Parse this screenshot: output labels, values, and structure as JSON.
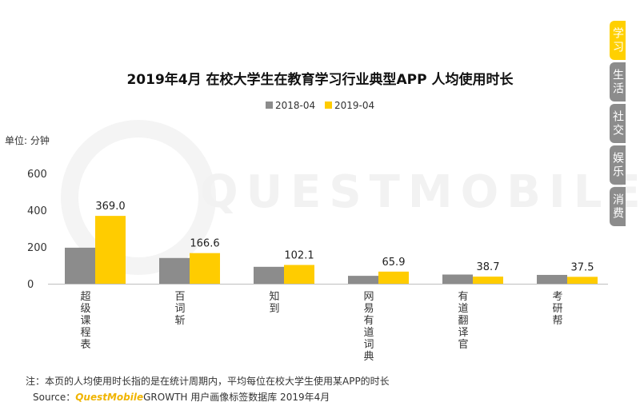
{
  "watermark_text": "QUESTMOBILE",
  "side_tabs": [
    {
      "label": "学习",
      "active": true
    },
    {
      "label": "生活",
      "active": false
    },
    {
      "label": "社交",
      "active": false
    },
    {
      "label": "娱乐",
      "active": false
    },
    {
      "label": "消费",
      "active": false
    }
  ],
  "footer": {
    "note": "注：本页的人均使用时长指的是在统计周期内，平均每位在校大学生使用某APP的时长",
    "source_prefix": "Source：",
    "source_brand": "QuestMobile",
    "source_rest": "GROWTH 用户画像标签数据库  2019年4月"
  },
  "colors": {
    "series_2018": "#8c8c8c",
    "series_2019": "#ffcc00",
    "accent": "#ffd000"
  },
  "chart_data": {
    "type": "bar",
    "title": "2019年4月 在校大学生在教育学习行业典型APP 人均使用时长",
    "unit_label": "单位: 分钟",
    "categories": [
      "超级课程表",
      "百词斩",
      "知到",
      "网易有道词典",
      "有道翻译官",
      "考研帮"
    ],
    "series": [
      {
        "name": "2018-04",
        "values": [
          196,
          140,
          92,
          43,
          50,
          48
        ]
      },
      {
        "name": "2019-04",
        "values": [
          369.0,
          166.6,
          102.1,
          65.9,
          38.7,
          37.5
        ],
        "labels": [
          "369.0",
          "166.6",
          "102.1",
          "65.9",
          "38.7",
          "37.5"
        ]
      }
    ],
    "yticks": [
      0,
      200,
      400,
      600
    ],
    "ylim": [
      0,
      600
    ],
    "grid": false,
    "legend_position": "top-center"
  }
}
